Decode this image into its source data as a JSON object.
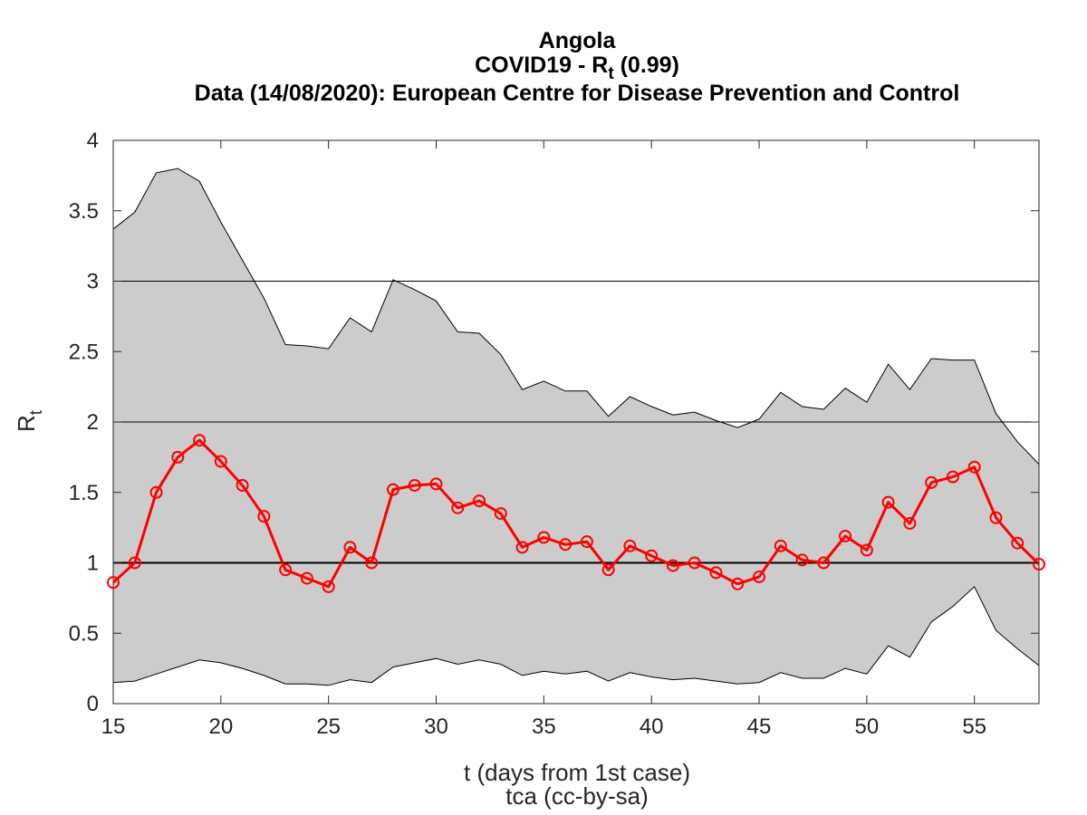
{
  "chart_data": {
    "type": "line",
    "title_lines": [
      "Angola",
      "COVID19 - R",
      "Data (14/08/2020): European Centre for Disease Prevention and Control"
    ],
    "title_rt_subscript": "t",
    "title_rt_value": " (0.99)",
    "xlabel": "t (days from 1st case)",
    "ylabel": "R",
    "ylabel_subscript": "t",
    "credit": "tca (cc-by-sa)",
    "xlim": [
      15,
      58
    ],
    "ylim": [
      0,
      4
    ],
    "xticks": [
      "15",
      "20",
      "25",
      "30",
      "35",
      "40",
      "45",
      "50",
      "55"
    ],
    "yticks": [
      "0",
      "0.5",
      "1",
      "1.5",
      "2",
      "2.5",
      "3",
      "3.5",
      "4"
    ],
    "reference_lines": [
      1,
      2,
      3
    ],
    "x": [
      15,
      16,
      17,
      18,
      19,
      20,
      21,
      22,
      23,
      24,
      25,
      26,
      27,
      28,
      29,
      30,
      31,
      32,
      33,
      34,
      35,
      36,
      37,
      38,
      39,
      40,
      41,
      42,
      43,
      44,
      45,
      46,
      47,
      48,
      49,
      50,
      51,
      52,
      53,
      54,
      55,
      56,
      57,
      58
    ],
    "series": [
      {
        "values": [
          0.86,
          1.0,
          1.5,
          1.75,
          1.87,
          1.72,
          1.55,
          1.33,
          0.95,
          0.89,
          0.83,
          1.11,
          1.0,
          1.52,
          1.55,
          1.56,
          1.39,
          1.44,
          1.35,
          1.11,
          1.18,
          1.13,
          1.15,
          0.95,
          1.12,
          1.05,
          0.98,
          1.0,
          0.93,
          0.85,
          0.9,
          1.12,
          1.02,
          1.0,
          1.19,
          1.09,
          1.43,
          1.28,
          1.57,
          1.61,
          1.68,
          1.32,
          1.14,
          0.99
        ],
        "color": "#ff0000",
        "marker": "circle"
      }
    ],
    "band_upper": [
      3.37,
      3.49,
      3.77,
      3.8,
      3.71,
      3.42,
      3.15,
      2.88,
      2.55,
      2.54,
      2.52,
      2.74,
      2.64,
      3.01,
      2.94,
      2.86,
      2.64,
      2.63,
      2.48,
      2.23,
      2.29,
      2.22,
      2.22,
      2.04,
      2.18,
      2.11,
      2.05,
      2.07,
      2.01,
      1.96,
      2.02,
      2.21,
      2.11,
      2.09,
      2.24,
      2.14,
      2.41,
      2.23,
      2.45,
      2.44,
      2.44,
      2.06,
      1.86,
      1.7
    ],
    "band_lower": [
      0.15,
      0.16,
      0.21,
      0.26,
      0.31,
      0.29,
      0.25,
      0.2,
      0.14,
      0.14,
      0.13,
      0.17,
      0.15,
      0.26,
      0.29,
      0.32,
      0.28,
      0.31,
      0.28,
      0.2,
      0.23,
      0.21,
      0.23,
      0.16,
      0.22,
      0.19,
      0.17,
      0.18,
      0.16,
      0.14,
      0.15,
      0.22,
      0.18,
      0.18,
      0.25,
      0.21,
      0.41,
      0.33,
      0.58,
      0.69,
      0.83,
      0.52,
      0.39,
      0.27
    ],
    "band_color": "#cccccc",
    "grid": false,
    "legend": "none"
  }
}
